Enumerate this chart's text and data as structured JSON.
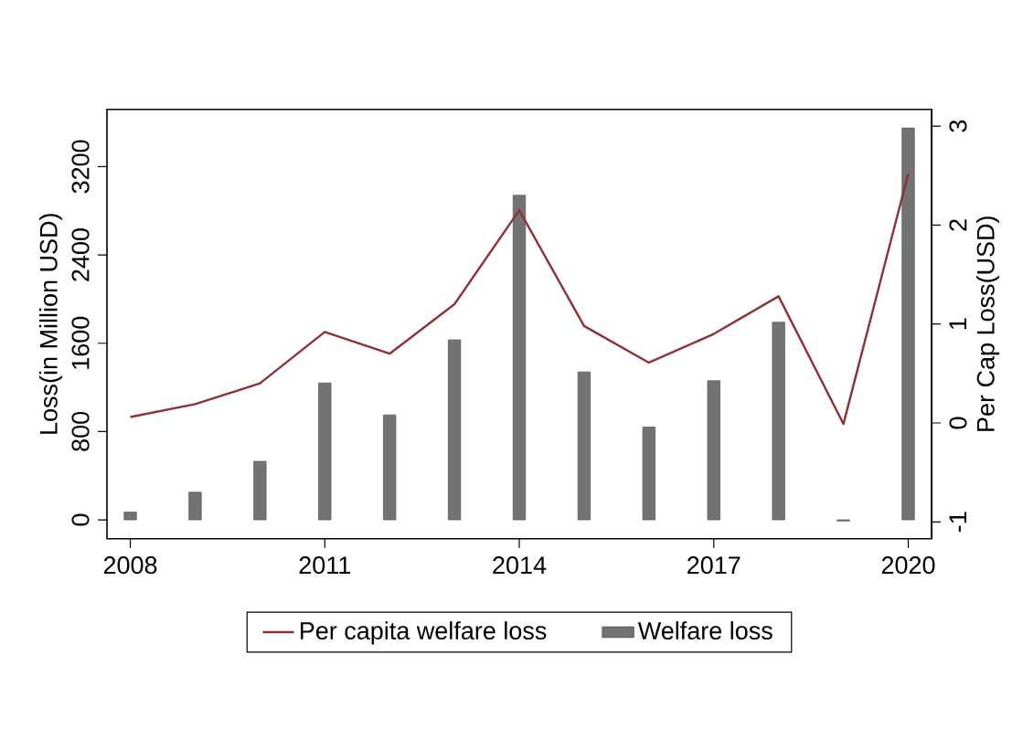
{
  "chart_data": {
    "type": "bar",
    "ylabel": "Loss(in Million USD)",
    "y2label": "Per Cap Loss(USD)",
    "x": [
      2008,
      2009,
      2010,
      2011,
      2012,
      2013,
      2014,
      2015,
      2016,
      2017,
      2018,
      2019,
      2020
    ],
    "series": [
      {
        "name": "Per capita welfare loss",
        "type": "line",
        "axis": "y2",
        "color": "#8f3038",
        "values": [
          0.06,
          0.19,
          0.4,
          0.92,
          0.7,
          1.2,
          2.15,
          0.98,
          0.61,
          0.9,
          1.28,
          -0.01,
          2.52
        ]
      },
      {
        "name": "Welfare loss",
        "color": "#737373",
        "values": [
          70,
          250,
          530,
          1240,
          950,
          1630,
          2940,
          1340,
          840,
          1260,
          1790,
          -10,
          3550
        ]
      }
    ],
    "xlim": [
      2007.64,
      2020.36
    ],
    "xticks": [
      2008,
      2011,
      2014,
      2017,
      2020
    ],
    "ylim": [
      -171,
      3719
    ],
    "yticks": [
      0,
      800,
      1600,
      2400,
      3200
    ],
    "y2lim": [
      -1.17,
      3.17
    ],
    "y2ticks": [
      -1,
      0,
      1,
      2,
      3
    ],
    "legend": "bottom",
    "grid": false,
    "marker": "none",
    "line_style": "solid"
  }
}
